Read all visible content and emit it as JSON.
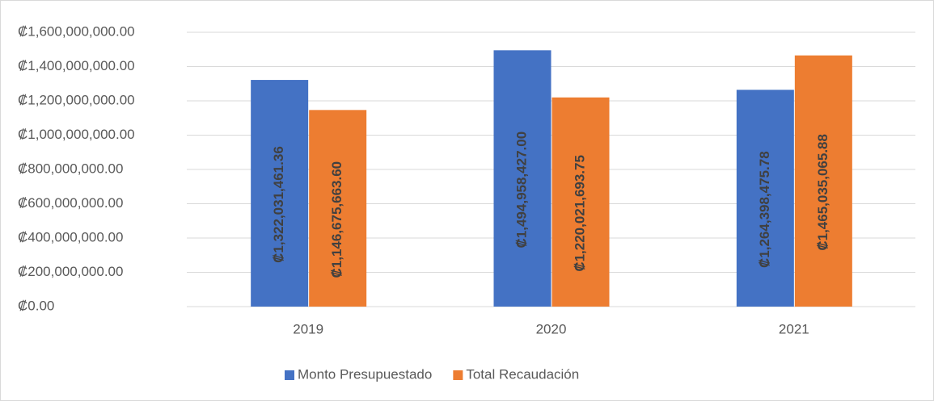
{
  "chart_data": {
    "type": "bar",
    "categories": [
      "2019",
      "2020",
      "2021"
    ],
    "series": [
      {
        "name": "Monto Presupuestado",
        "color": "#4472c4",
        "values": [
          1322031461.36,
          1494958427.0,
          1264398475.78
        ],
        "value_labels": [
          "₡1,322,031,461.36",
          "₡1,494,958,427.00",
          "₡1,264,398,475.78"
        ]
      },
      {
        "name": "Total Recaudación",
        "color": "#ed7d31",
        "values": [
          1146675663.6,
          1220021693.75,
          1465035065.88
        ],
        "value_labels": [
          "₡1,146,675,663.60",
          "₡1,220,021,693.75",
          "₡1,465,035,065.88"
        ]
      }
    ],
    "ylim": [
      0,
      1600000000
    ],
    "yticks": [
      {
        "value": 0,
        "label": "₡0.00"
      },
      {
        "value": 200000000,
        "label": "₡200,000,000.00"
      },
      {
        "value": 400000000,
        "label": "₡400,000,000.00"
      },
      {
        "value": 600000000,
        "label": "₡600,000,000.00"
      },
      {
        "value": 800000000,
        "label": "₡800,000,000.00"
      },
      {
        "value": 1000000000,
        "label": "₡1,000,000,000.00"
      },
      {
        "value": 1200000000,
        "label": "₡1,200,000,000.00"
      },
      {
        "value": 1400000000,
        "label": "₡1,400,000,000.00"
      },
      {
        "value": 1600000000,
        "label": "₡1,600,000,000.00"
      }
    ],
    "grid": true,
    "legend": "bottom"
  }
}
